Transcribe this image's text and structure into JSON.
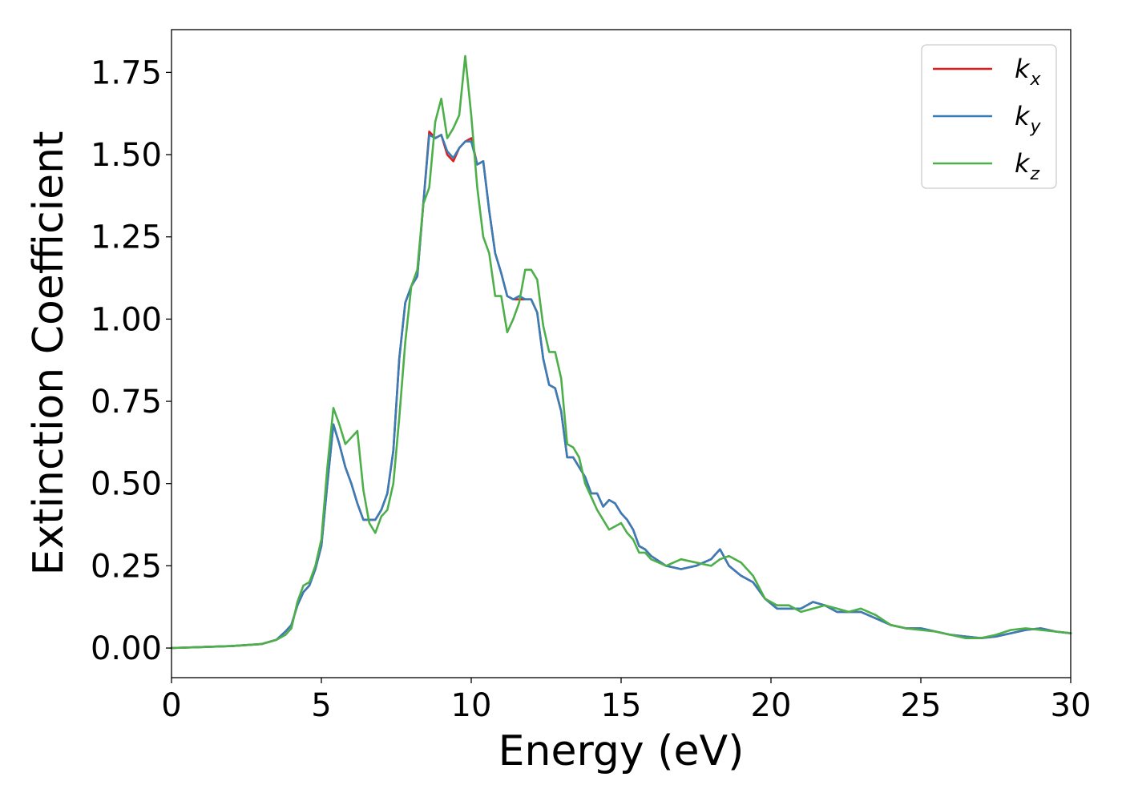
{
  "chart_data": {
    "type": "line",
    "title": "",
    "xlabel": "Energy (eV)",
    "ylabel": "Extinction Coefficient",
    "xlim": [
      0,
      30
    ],
    "ylim": [
      -0.09,
      1.88
    ],
    "xticks": [
      0,
      5,
      10,
      15,
      20,
      25,
      30
    ],
    "xtick_labels": [
      "0",
      "5",
      "10",
      "15",
      "20",
      "25",
      "30"
    ],
    "yticks": [
      0,
      0.25,
      0.5,
      0.75,
      1.0,
      1.25,
      1.5,
      1.75
    ],
    "ytick_labels": [
      "0.00",
      "0.25",
      "0.50",
      "0.75",
      "1.00",
      "1.25",
      "1.50",
      "1.75"
    ],
    "grid": false,
    "legend_position": "top-right",
    "series": [
      {
        "name": "kx",
        "label_main": "k",
        "label_sub": "x",
        "color": "#e41a1c",
        "x": [
          0,
          1,
          2,
          3,
          3.5,
          3.8,
          4.0,
          4.2,
          4.4,
          4.6,
          4.8,
          5.0,
          5.2,
          5.4,
          5.6,
          5.8,
          6.0,
          6.2,
          6.4,
          6.6,
          6.8,
          7.0,
          7.2,
          7.4,
          7.6,
          7.8,
          8.0,
          8.2,
          8.4,
          8.6,
          8.8,
          9.0,
          9.2,
          9.4,
          9.6,
          9.8,
          10.0,
          10.2,
          10.4,
          10.6,
          10.8,
          11.0,
          11.2,
          11.4,
          11.6,
          11.8,
          12.0,
          12.2,
          12.4,
          12.6,
          12.8,
          13.0,
          13.2,
          13.4,
          13.6,
          13.8,
          14.0,
          14.2,
          14.4,
          14.6,
          14.8,
          15.0,
          15.2,
          15.4,
          15.6,
          15.8,
          16.0,
          16.5,
          17.0,
          17.5,
          18.0,
          18.3,
          18.6,
          19.0,
          19.4,
          19.8,
          20.2,
          20.6,
          21.0,
          21.4,
          21.8,
          22.2,
          22.6,
          23.0,
          23.5,
          24.0,
          24.5,
          25.0,
          25.5,
          26.0,
          26.5,
          27.0,
          27.5,
          28.0,
          28.5,
          29.0,
          29.5,
          30.0
        ],
        "y": [
          0.0,
          0.003,
          0.006,
          0.012,
          0.025,
          0.05,
          0.07,
          0.13,
          0.17,
          0.19,
          0.24,
          0.31,
          0.5,
          0.68,
          0.62,
          0.55,
          0.5,
          0.44,
          0.39,
          0.39,
          0.39,
          0.42,
          0.47,
          0.6,
          0.88,
          1.05,
          1.1,
          1.13,
          1.35,
          1.57,
          1.55,
          1.56,
          1.5,
          1.48,
          1.52,
          1.54,
          1.55,
          1.47,
          1.48,
          1.33,
          1.2,
          1.14,
          1.07,
          1.06,
          1.06,
          1.06,
          1.06,
          1.02,
          0.88,
          0.8,
          0.79,
          0.72,
          0.58,
          0.58,
          0.55,
          0.52,
          0.47,
          0.47,
          0.43,
          0.45,
          0.44,
          0.41,
          0.39,
          0.36,
          0.31,
          0.3,
          0.28,
          0.25,
          0.24,
          0.25,
          0.27,
          0.3,
          0.25,
          0.22,
          0.2,
          0.15,
          0.12,
          0.12,
          0.12,
          0.14,
          0.13,
          0.11,
          0.11,
          0.11,
          0.09,
          0.07,
          0.06,
          0.06,
          0.05,
          0.04,
          0.035,
          0.03,
          0.035,
          0.045,
          0.055,
          0.06,
          0.05,
          0.045
        ]
      },
      {
        "name": "ky",
        "label_main": "k",
        "label_sub": "y",
        "color": "#377eb8",
        "x": [
          0,
          1,
          2,
          3,
          3.5,
          3.8,
          4.0,
          4.2,
          4.4,
          4.6,
          4.8,
          5.0,
          5.2,
          5.4,
          5.6,
          5.8,
          6.0,
          6.2,
          6.4,
          6.6,
          6.8,
          7.0,
          7.2,
          7.4,
          7.6,
          7.8,
          8.0,
          8.2,
          8.4,
          8.6,
          8.8,
          9.0,
          9.2,
          9.4,
          9.6,
          9.8,
          10.0,
          10.2,
          10.4,
          10.6,
          10.8,
          11.0,
          11.2,
          11.4,
          11.6,
          11.8,
          12.0,
          12.2,
          12.4,
          12.6,
          12.8,
          13.0,
          13.2,
          13.4,
          13.6,
          13.8,
          14.0,
          14.2,
          14.4,
          14.6,
          14.8,
          15.0,
          15.2,
          15.4,
          15.6,
          15.8,
          16.0,
          16.5,
          17.0,
          17.5,
          18.0,
          18.3,
          18.6,
          19.0,
          19.4,
          19.8,
          20.2,
          20.6,
          21.0,
          21.4,
          21.8,
          22.2,
          22.6,
          23.0,
          23.5,
          24.0,
          24.5,
          25.0,
          25.5,
          26.0,
          26.5,
          27.0,
          27.5,
          28.0,
          28.5,
          29.0,
          29.5,
          30.0
        ],
        "y": [
          0.0,
          0.003,
          0.006,
          0.012,
          0.025,
          0.05,
          0.07,
          0.13,
          0.17,
          0.19,
          0.24,
          0.31,
          0.5,
          0.68,
          0.62,
          0.55,
          0.5,
          0.44,
          0.39,
          0.39,
          0.39,
          0.42,
          0.47,
          0.6,
          0.88,
          1.05,
          1.1,
          1.13,
          1.35,
          1.56,
          1.55,
          1.56,
          1.51,
          1.49,
          1.52,
          1.54,
          1.54,
          1.47,
          1.48,
          1.33,
          1.2,
          1.14,
          1.07,
          1.06,
          1.07,
          1.06,
          1.06,
          1.02,
          0.88,
          0.8,
          0.79,
          0.72,
          0.58,
          0.58,
          0.55,
          0.52,
          0.47,
          0.47,
          0.43,
          0.45,
          0.44,
          0.41,
          0.39,
          0.36,
          0.31,
          0.3,
          0.28,
          0.25,
          0.24,
          0.25,
          0.27,
          0.3,
          0.25,
          0.22,
          0.2,
          0.15,
          0.12,
          0.12,
          0.12,
          0.14,
          0.13,
          0.11,
          0.11,
          0.11,
          0.09,
          0.07,
          0.06,
          0.06,
          0.05,
          0.04,
          0.035,
          0.03,
          0.035,
          0.045,
          0.055,
          0.06,
          0.05,
          0.045
        ]
      },
      {
        "name": "kz",
        "label_main": "k",
        "label_sub": "z",
        "color": "#4daf4a",
        "x": [
          0,
          1,
          2,
          3,
          3.5,
          3.8,
          4.0,
          4.2,
          4.4,
          4.6,
          4.8,
          5.0,
          5.2,
          5.4,
          5.6,
          5.8,
          6.0,
          6.2,
          6.4,
          6.6,
          6.8,
          7.0,
          7.2,
          7.4,
          7.6,
          7.8,
          8.0,
          8.2,
          8.4,
          8.6,
          8.8,
          9.0,
          9.2,
          9.4,
          9.6,
          9.8,
          10.0,
          10.2,
          10.4,
          10.6,
          10.8,
          11.0,
          11.2,
          11.4,
          11.6,
          11.8,
          12.0,
          12.2,
          12.4,
          12.6,
          12.8,
          13.0,
          13.2,
          13.4,
          13.6,
          13.8,
          14.0,
          14.2,
          14.4,
          14.6,
          14.8,
          15.0,
          15.2,
          15.4,
          15.6,
          15.8,
          16.0,
          16.5,
          17.0,
          17.5,
          18.0,
          18.3,
          18.6,
          19.0,
          19.4,
          19.8,
          20.2,
          20.6,
          21.0,
          21.4,
          21.8,
          22.2,
          22.6,
          23.0,
          23.5,
          24.0,
          24.5,
          25.0,
          25.5,
          26.0,
          26.5,
          27.0,
          27.5,
          28.0,
          28.5,
          29.0,
          29.5,
          30.0
        ],
        "y": [
          0.0,
          0.003,
          0.006,
          0.012,
          0.025,
          0.04,
          0.06,
          0.14,
          0.19,
          0.2,
          0.25,
          0.33,
          0.55,
          0.73,
          0.68,
          0.62,
          0.64,
          0.66,
          0.48,
          0.38,
          0.35,
          0.4,
          0.42,
          0.5,
          0.7,
          0.93,
          1.1,
          1.15,
          1.35,
          1.4,
          1.6,
          1.67,
          1.55,
          1.58,
          1.62,
          1.8,
          1.62,
          1.4,
          1.25,
          1.2,
          1.07,
          1.07,
          0.96,
          1.0,
          1.05,
          1.15,
          1.15,
          1.12,
          0.98,
          0.9,
          0.9,
          0.82,
          0.62,
          0.61,
          0.58,
          0.5,
          0.46,
          0.42,
          0.39,
          0.36,
          0.37,
          0.38,
          0.35,
          0.33,
          0.29,
          0.29,
          0.27,
          0.25,
          0.27,
          0.26,
          0.25,
          0.27,
          0.28,
          0.26,
          0.22,
          0.15,
          0.13,
          0.13,
          0.11,
          0.12,
          0.13,
          0.12,
          0.11,
          0.12,
          0.1,
          0.07,
          0.06,
          0.055,
          0.05,
          0.04,
          0.03,
          0.03,
          0.04,
          0.055,
          0.06,
          0.055,
          0.05,
          0.045
        ]
      }
    ]
  }
}
